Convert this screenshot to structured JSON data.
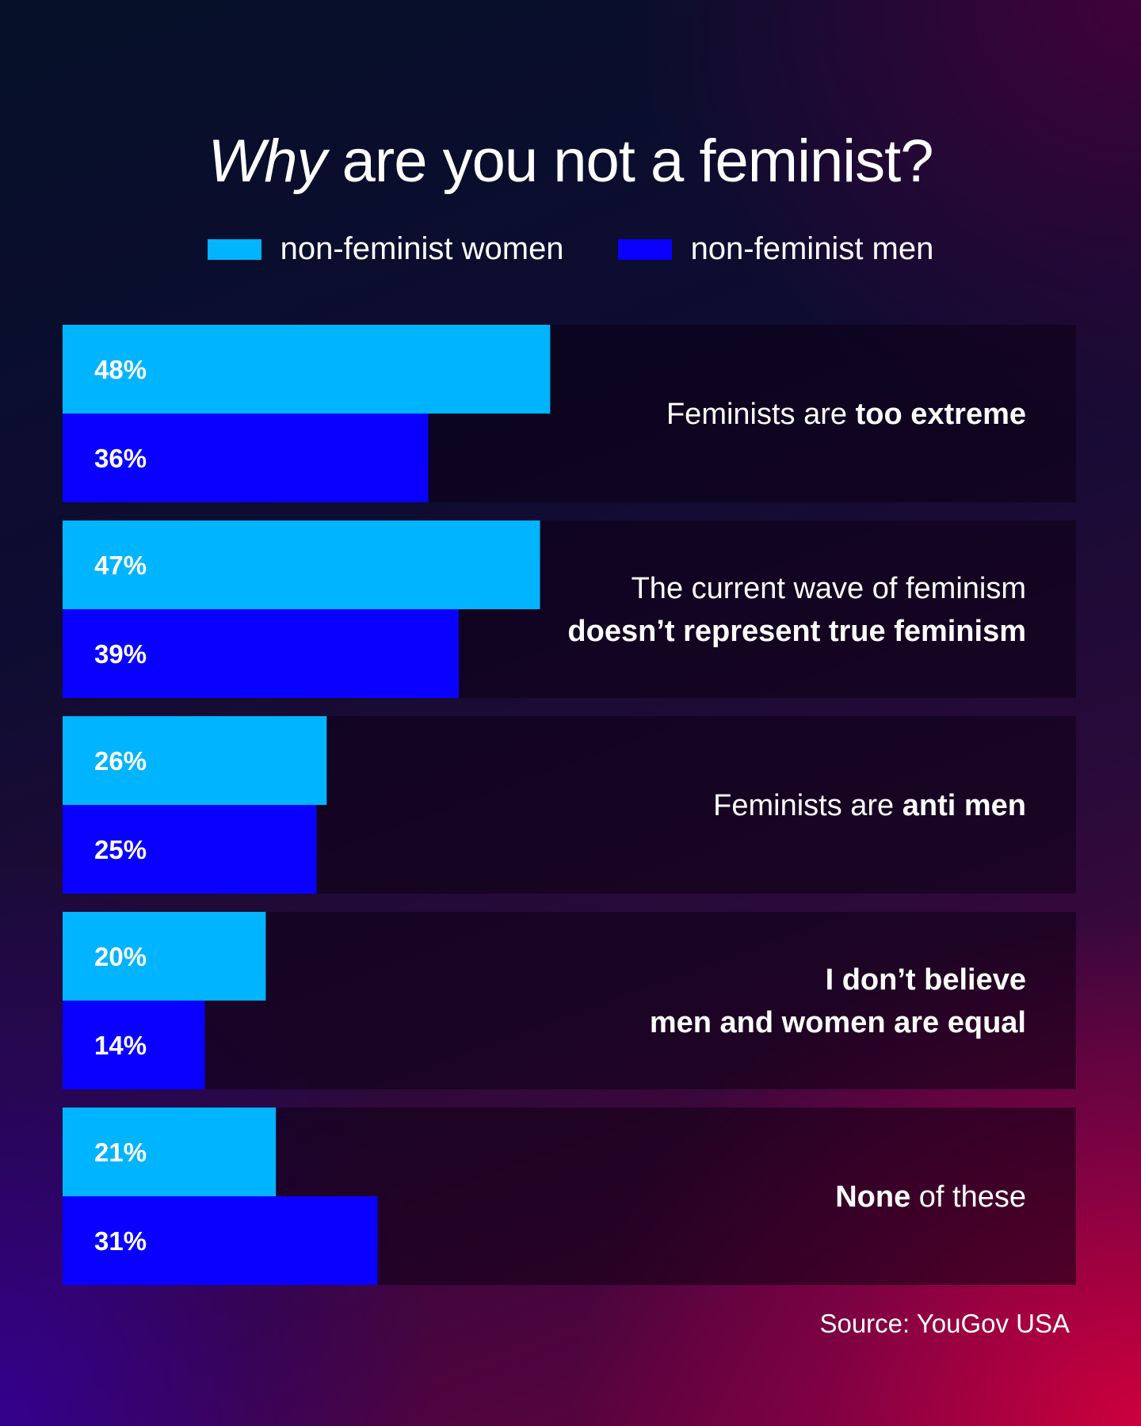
{
  "header": {
    "title_em": "Why",
    "title_rest": " are you not a feminist?"
  },
  "legend": [
    {
      "label": "non-feminist women",
      "color": "#00b4ff"
    },
    {
      "label": "non-feminist men",
      "color": "#0a00ff"
    }
  ],
  "chart_data": {
    "type": "bar",
    "orientation": "horizontal",
    "unit": "%",
    "xlim": [
      0,
      100
    ],
    "categories": [
      {
        "segments": [
          {
            "text": "Feminists are ",
            "bold": false
          },
          {
            "text": "too extreme",
            "bold": true
          }
        ]
      },
      {
        "segments": [
          {
            "text": "The current wave of feminism",
            "bold": false
          },
          {
            "text": "doesn’t represent true feminism",
            "bold": true,
            "newline": true
          }
        ]
      },
      {
        "segments": [
          {
            "text": "Feminists are ",
            "bold": false
          },
          {
            "text": "anti men",
            "bold": true
          }
        ]
      },
      {
        "segments": [
          {
            "text": "I don’t believe",
            "bold": true
          },
          {
            "text": "men and women are equal",
            "bold": true,
            "newline": true
          }
        ]
      },
      {
        "segments": [
          {
            "text": "None",
            "bold": true
          },
          {
            "text": " of these",
            "bold": false
          }
        ]
      }
    ],
    "series": [
      {
        "name": "non-feminist women",
        "color": "#00b4ff",
        "values": [
          48,
          47,
          26,
          20,
          21
        ],
        "labels": [
          "48%",
          "47%",
          "26%",
          "20%",
          "21%"
        ]
      },
      {
        "name": "non-feminist men",
        "color": "#0a00ff",
        "values": [
          36,
          39,
          25,
          14,
          31
        ],
        "labels": [
          "36%",
          "39%",
          "25%",
          "14%",
          "31%"
        ]
      }
    ],
    "grid": false,
    "legend_position": "top"
  },
  "footer": {
    "source": "Source: YouGov USA"
  }
}
